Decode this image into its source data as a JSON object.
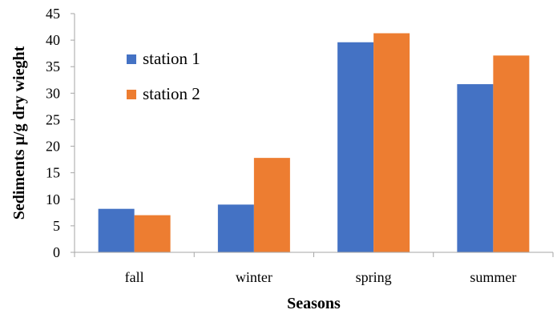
{
  "chart_data": {
    "type": "bar",
    "title": "",
    "xlabel": "Seasons",
    "ylabel": "Sediments µ/g dry wieght",
    "categories": [
      "fall",
      "winter",
      "spring",
      "summer"
    ],
    "series": [
      {
        "name": "station 1",
        "color": "#4472C4",
        "values": [
          8.2,
          9.0,
          39.6,
          31.7
        ]
      },
      {
        "name": "station 2",
        "color": "#ED7D31",
        "values": [
          7.0,
          17.8,
          41.3,
          37.1
        ]
      }
    ],
    "ylim": [
      0,
      45
    ],
    "yticks": [
      0,
      5,
      10,
      15,
      20,
      25,
      30,
      35,
      40,
      45
    ],
    "grid": false,
    "legend_position": "top-left"
  }
}
